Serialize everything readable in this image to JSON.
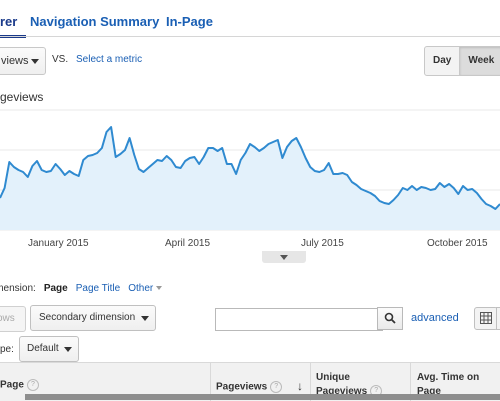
{
  "tabs": [
    {
      "label": "rer",
      "active": true
    },
    {
      "label": "Navigation Summary",
      "active": false
    },
    {
      "label": "In-Page",
      "active": false
    }
  ],
  "controls": {
    "metric_select": "views",
    "vs_label": "VS.",
    "select_metric": "Select a metric",
    "time_buttons": [
      "Day",
      "Week"
    ],
    "selected_time": "Week"
  },
  "chart_data": {
    "type": "area",
    "series": [
      {
        "values": [
          152,
          162,
          188,
          183,
          180,
          178,
          173,
          184,
          189,
          180,
          178,
          179,
          186,
          181,
          175,
          179,
          176,
          174,
          190,
          194,
          195,
          197,
          202,
          218,
          223,
          193,
          196,
          200,
          212,
          195,
          181,
          178,
          182,
          186,
          190,
          189,
          194,
          190,
          183,
          182,
          189,
          192,
          193,
          186,
          193,
          202,
          202,
          199,
          202,
          186,
          186,
          176,
          190,
          197,
          206,
          203,
          199,
          202,
          206,
          208,
          210,
          192,
          203,
          209,
          212,
          203,
          192,
          183,
          179,
          178,
          180,
          187,
          176,
          176,
          177,
          175,
          168,
          165,
          161,
          159,
          157,
          154,
          149,
          147,
          146,
          150,
          155,
          162,
          160,
          164,
          160,
          163,
          162,
          160,
          161,
          167,
          163,
          166,
          162,
          156,
          164,
          160,
          161,
          157,
          151,
          146,
          144,
          141,
          146
        ]
      }
    ],
    "x_labels": [
      "January 2015",
      "April 2015",
      "July 2015",
      "October 2015"
    ],
    "ylabel": "geviews",
    "grid": true,
    "line_color": "#2f8ad0",
    "fill_color": "#e3f1fb"
  },
  "dimension_bar": {
    "label": "imension:",
    "active": "Page",
    "options": [
      "Page Title",
      "Other"
    ]
  },
  "table_controls": {
    "plot_rows": "ows",
    "secondary_dimension": "Secondary dimension",
    "search_value": "",
    "advanced": "advanced",
    "type_label": "pe:",
    "type_value": "Default"
  },
  "table": {
    "columns": [
      "Page",
      "Pageviews",
      "Unique Pageviews",
      "Avg. Time on Page"
    ]
  },
  "icons": {
    "search": "search-icon",
    "grid": "grid-view-icon",
    "sort": "sort-arrow-icon",
    "help": "help-icon",
    "collapse": "chevron-down-icon"
  },
  "colors": {
    "link": "#1a5fb4",
    "active_tab": "#1a3a8a"
  }
}
